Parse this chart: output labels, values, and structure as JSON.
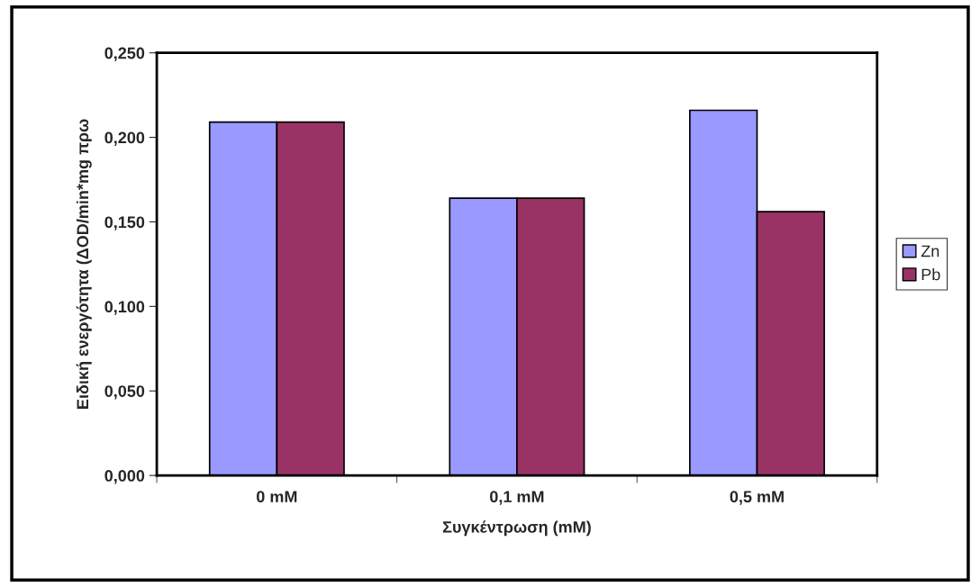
{
  "chart_data": {
    "type": "bar",
    "xlabel": "Συγκέντρωση (mM)",
    "ylabel": "Ειδική ενεργότητα (ΔOD/min*mg πρω",
    "categories": [
      "0 mM",
      "0,1 mM",
      "0,5 mM"
    ],
    "series": [
      {
        "name": "Zn",
        "color": "#9999ff",
        "values": [
          0.209,
          0.164,
          0.216
        ]
      },
      {
        "name": "Pb",
        "color": "#993366",
        "values": [
          0.209,
          0.164,
          0.156
        ]
      }
    ],
    "ylim": [
      0,
      0.25
    ],
    "yticks": [
      {
        "value": 0,
        "label": "0,000"
      },
      {
        "value": 0.05,
        "label": "0,050"
      },
      {
        "value": 0.1,
        "label": "0,100"
      },
      {
        "value": 0.15,
        "label": "0,150"
      },
      {
        "value": 0.2,
        "label": "0,200"
      },
      {
        "value": 0.25,
        "label": "0,250"
      }
    ],
    "grid": false,
    "legend": "right"
  }
}
